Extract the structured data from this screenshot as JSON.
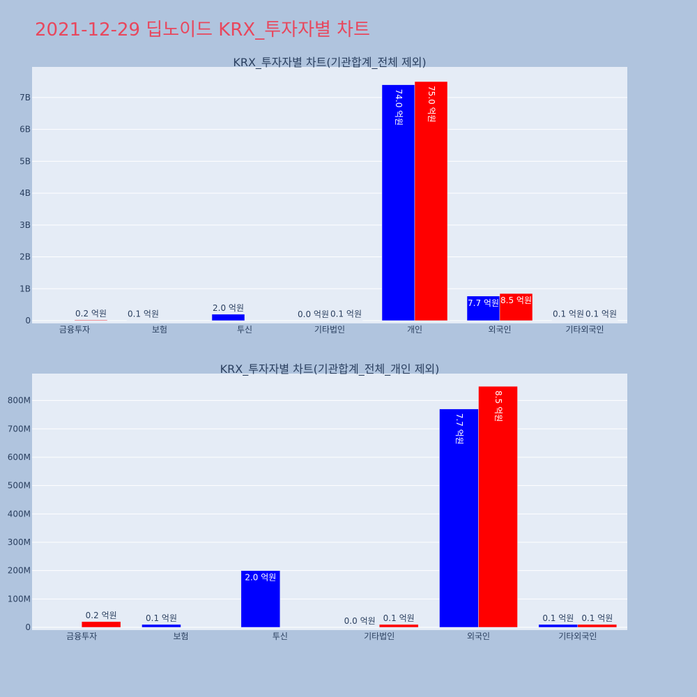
{
  "page_title": "2021-12-29 딥노이드 KRX_투자자별 차트",
  "colors": {
    "background": "#b0c4de",
    "plot_bg": "#e5ecf6",
    "title": "#e8475d",
    "sell": "#0000ff",
    "buy": "#ff0000",
    "grid": "#ffffff"
  },
  "chart_data": [
    {
      "type": "bar",
      "title": "KRX_투자자별 차트(기관합계_전체 제외)",
      "categories": [
        "금융투자",
        "보험",
        "투신",
        "기타법인",
        "개인",
        "외국인",
        "기타외국인"
      ],
      "series": [
        {
          "color": "#0000ff",
          "values": [
            0,
            10000000,
            200000000,
            0,
            7400000000,
            770000000,
            10000000
          ],
          "labels": [
            "",
            "0.1 억원",
            "2.0 억원",
            "0.0 억원",
            "74.0 억원",
            "7.7 억원",
            "0.1 억원"
          ]
        },
        {
          "color": "#ff0000",
          "values": [
            20000000,
            0,
            0,
            10000000,
            7500000000,
            850000000,
            10000000
          ],
          "labels": [
            "0.2 억원",
            "",
            "",
            "0.1 억원",
            "75.0 억원",
            "8.5 억원",
            "0.1 억원"
          ]
        }
      ],
      "ylim": [
        0,
        7960000000
      ],
      "yticks": [
        0,
        1000000000,
        2000000000,
        3000000000,
        4000000000,
        5000000000,
        6000000000,
        7000000000
      ],
      "ytick_labels": [
        "0",
        "1B",
        "2B",
        "3B",
        "4B",
        "5B",
        "6B",
        "7B"
      ],
      "grid": true
    },
    {
      "type": "bar",
      "title": "KRX_투자자별 차트(기관합계_전체_개인 제외)",
      "categories": [
        "금융투자",
        "보험",
        "투신",
        "기타법인",
        "외국인",
        "기타외국인"
      ],
      "series": [
        {
          "color": "#0000ff",
          "values": [
            0,
            10000000,
            200000000,
            0,
            770000000,
            10000000
          ],
          "labels": [
            "",
            "0.1 억원",
            "2.0 억원",
            "0.0 억원",
            "7.7 억원",
            "0.1 억원"
          ]
        },
        {
          "color": "#ff0000",
          "values": [
            20000000,
            0,
            0,
            10000000,
            850000000,
            10000000
          ],
          "labels": [
            "0.2 억원",
            "",
            "",
            "0.1 억원",
            "8.5 억원",
            "0.1 억원"
          ]
        }
      ],
      "ylim": [
        0,
        895000000
      ],
      "yticks": [
        0,
        100000000,
        200000000,
        300000000,
        400000000,
        500000000,
        600000000,
        700000000,
        800000000
      ],
      "ytick_labels": [
        "0",
        "100M",
        "200M",
        "300M",
        "400M",
        "500M",
        "600M",
        "700M",
        "800M"
      ],
      "grid": true
    }
  ]
}
